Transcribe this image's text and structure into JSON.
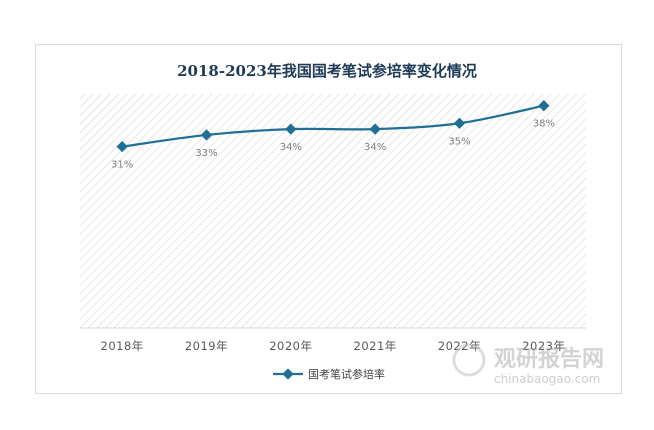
{
  "chart_data": {
    "type": "line",
    "title": "2018-2023年我国国考笔试参培率变化情况",
    "categories": [
      "2018年",
      "2019年",
      "2020年",
      "2021年",
      "2022年",
      "2023年"
    ],
    "series": [
      {
        "name": "国考笔试参培率",
        "values": [
          31,
          33,
          34,
          34,
          35,
          38
        ],
        "data_labels": [
          "31%",
          "33%",
          "34%",
          "34%",
          "35%",
          "38%"
        ],
        "color": "#1f6f96"
      }
    ],
    "ylim": [
      0,
      40
    ],
    "grid": false,
    "plot_background": "hatched",
    "legend_position": "bottom"
  },
  "watermark": {
    "brand": "观研报告网",
    "url": "chinabaogao.com"
  },
  "colors": {
    "title": "#1f3a56",
    "line": "#1f6f96",
    "hatch": "#d6d6d6"
  }
}
